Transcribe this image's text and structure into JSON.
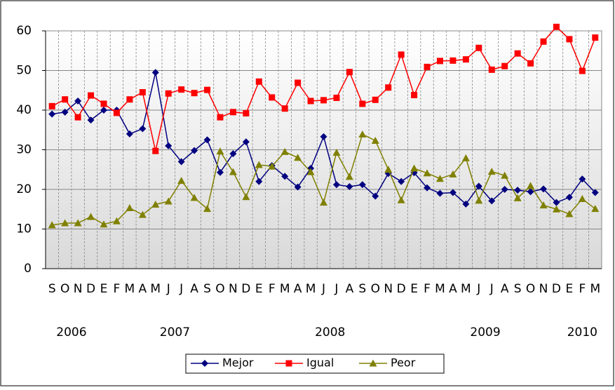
{
  "chart_data": {
    "type": "line",
    "categories": [
      "S",
      "O",
      "N",
      "D",
      "E",
      "F",
      "M",
      "A",
      "M",
      "J",
      "J",
      "A",
      "S",
      "O",
      "N",
      "D",
      "E",
      "F",
      "M",
      "A",
      "M",
      "J",
      "J",
      "A",
      "S",
      "O",
      "N",
      "D",
      "E",
      "F",
      "M",
      "A",
      "M",
      "J",
      "J",
      "A",
      "S",
      "O",
      "N",
      "D",
      "E",
      "F",
      "M"
    ],
    "years": [
      "2006",
      null,
      null,
      null,
      "2007",
      null,
      null,
      null,
      null,
      null,
      null,
      null,
      null,
      null,
      null,
      null,
      "2008",
      null,
      null,
      null,
      null,
      null,
      null,
      null,
      null,
      null,
      null,
      null,
      "2009",
      null,
      null,
      null,
      null,
      null,
      null,
      null,
      null,
      null,
      null,
      null,
      "2010",
      null,
      null
    ],
    "series": [
      {
        "name": "Mejor",
        "color": "#000080",
        "marker": "diamond",
        "values": [
          39,
          39.5,
          42.3,
          37.5,
          40,
          40,
          34,
          35.3,
          49.5,
          31,
          27,
          29.8,
          32.5,
          24.3,
          29,
          32,
          22,
          26,
          23.3,
          20.6,
          25.3,
          33.3,
          21.2,
          20.7,
          21.2,
          18.3,
          24,
          22,
          24.2,
          20.4,
          19,
          19.2,
          16.3,
          20.8,
          17.1,
          20,
          19.8,
          19.4,
          20.1,
          16.7,
          18,
          22.6,
          19.2
        ]
      },
      {
        "name": "Igual",
        "color": "#ff0000",
        "marker": "square",
        "values": [
          41,
          42.7,
          38.2,
          43.7,
          41.6,
          39.3,
          42.7,
          44.5,
          29.7,
          44.2,
          45.2,
          44.3,
          45.1,
          38.2,
          39.5,
          39.2,
          47.2,
          43.2,
          40.4,
          46.9,
          42.3,
          42.5,
          43.1,
          49.6,
          41.6,
          42.6,
          45.7,
          54,
          43.8,
          50.9,
          52.4,
          52.5,
          52.8,
          55.7,
          50.2,
          51.1,
          54.3,
          51.8,
          57.3,
          61,
          57.9,
          49.9,
          58.3
        ]
      },
      {
        "name": "Peor",
        "color": "#808000",
        "marker": "triangle",
        "values": [
          11,
          11.5,
          11.5,
          13.1,
          11.2,
          12,
          15.3,
          13.6,
          16.2,
          17,
          22.2,
          17.9,
          15.1,
          29.6,
          24.4,
          18.1,
          26.2,
          25.8,
          29.5,
          28,
          24.4,
          16.7,
          29.3,
          23.2,
          33.9,
          32.3,
          25,
          17.3,
          25.3,
          24.1,
          22.7,
          23.8,
          27.9,
          17.2,
          24.5,
          23.5,
          17.8,
          20.9,
          16,
          15,
          13.8,
          17.6,
          15.1
        ]
      }
    ],
    "ylim": [
      0,
      60
    ],
    "yticks": [
      0,
      10,
      20,
      30,
      40,
      50,
      60
    ],
    "grid": true
  }
}
